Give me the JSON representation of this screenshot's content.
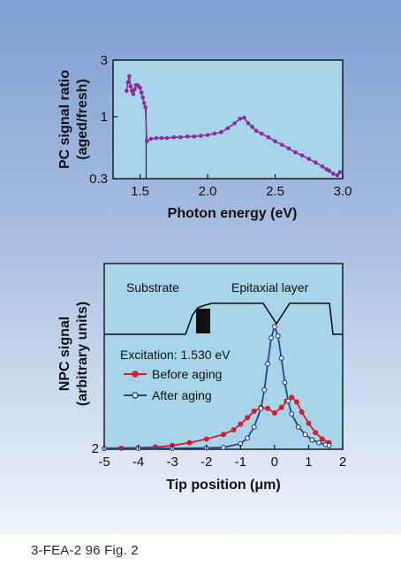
{
  "caption": "3-FEA-2 96 Fig. 2",
  "colors": {
    "plot_fill": "#a8d4ea",
    "top_series": "#8e2c9e",
    "before_aging": "#d61e2a",
    "after_aging": "#2c4586"
  },
  "chart_data": [
    {
      "type": "scatter",
      "xlabel": "Photon energy (eV)",
      "ylabel_lines": [
        "PC signal ratio",
        "(aged/fresh)"
      ],
      "x_ticks": [
        "1.5",
        "2.0",
        "2.5",
        "3.0"
      ],
      "y_ticks": [
        "0.3",
        "1",
        "3"
      ],
      "xlim": [
        1.3,
        3.0
      ],
      "ylim": [
        0.3,
        3
      ],
      "y_scale": "log",
      "series": [
        {
          "x": [
            1.4,
            1.41,
            1.42,
            1.43,
            1.44,
            1.45,
            1.46,
            1.47,
            1.48,
            1.49,
            1.5,
            1.51,
            1.52,
            1.53,
            1.54,
            1.55,
            1.58,
            1.62,
            1.66,
            1.7,
            1.75,
            1.8,
            1.85,
            1.9,
            1.95,
            2.0,
            2.05,
            2.1,
            2.15,
            2.2,
            2.24,
            2.27,
            2.3,
            2.33,
            2.36,
            2.4,
            2.45,
            2.5,
            2.55,
            2.6,
            2.65,
            2.7,
            2.75,
            2.8,
            2.85,
            2.88,
            2.9,
            2.93,
            2.96,
            2.98
          ],
          "y": [
            1.65,
            1.95,
            2.2,
            1.8,
            1.65,
            1.55,
            1.7,
            1.85,
            1.85,
            1.8,
            1.75,
            1.6,
            1.45,
            1.3,
            1.2,
            0.62,
            0.65,
            0.66,
            0.66,
            0.66,
            0.67,
            0.67,
            0.68,
            0.68,
            0.69,
            0.7,
            0.72,
            0.74,
            0.8,
            0.88,
            0.96,
            0.98,
            0.88,
            0.82,
            0.76,
            0.72,
            0.67,
            0.62,
            0.58,
            0.54,
            0.5,
            0.47,
            0.44,
            0.41,
            0.38,
            0.36,
            0.35,
            0.33,
            0.32,
            0.34
          ]
        }
      ]
    },
    {
      "type": "line",
      "xlabel": "Tip position (μm)",
      "ylabel_lines": [
        "NPC signal",
        "(arbitrary units)"
      ],
      "x_ticks": [
        "-5",
        "-4",
        "-3",
        "-2",
        "-1",
        "0",
        "1",
        "2"
      ],
      "y_ticks": [
        "2"
      ],
      "xlim": [
        -5,
        2
      ],
      "y_range": [
        0,
        10
      ],
      "annotations": {
        "substrate": "Substrate",
        "epitaxial": "Epitaxial layer",
        "excitation": "Excitation: 1.530 eV"
      },
      "series": [
        {
          "name": "Before aging",
          "x": [
            -5.0,
            -4.5,
            -4.0,
            -3.5,
            -3.0,
            -2.5,
            -2.0,
            -1.5,
            -1.2,
            -1.0,
            -0.8,
            -0.6,
            -0.4,
            -0.2,
            0.0,
            0.2,
            0.35,
            0.5,
            0.65,
            0.8,
            1.0,
            1.2,
            1.4,
            1.6
          ],
          "y": [
            0.05,
            0.06,
            0.08,
            0.12,
            0.2,
            0.35,
            0.55,
            0.8,
            1.05,
            1.35,
            1.7,
            2.05,
            2.25,
            2.2,
            1.95,
            2.25,
            2.6,
            2.8,
            2.55,
            2.0,
            1.4,
            0.9,
            0.55,
            0.35
          ]
        },
        {
          "name": "After aging",
          "x": [
            -5.0,
            -4.0,
            -3.0,
            -2.0,
            -1.5,
            -1.0,
            -0.8,
            -0.6,
            -0.4,
            -0.3,
            -0.2,
            -0.1,
            0.0,
            0.1,
            0.2,
            0.3,
            0.4,
            0.5,
            0.7,
            0.9,
            1.1,
            1.3,
            1.5,
            1.6
          ],
          "y": [
            0.05,
            0.05,
            0.05,
            0.07,
            0.1,
            0.3,
            0.6,
            1.2,
            2.2,
            3.2,
            4.6,
            6.0,
            6.6,
            6.1,
            4.9,
            3.6,
            2.6,
            1.9,
            1.2,
            0.8,
            0.5,
            0.35,
            0.25,
            0.2
          ]
        }
      ]
    }
  ]
}
